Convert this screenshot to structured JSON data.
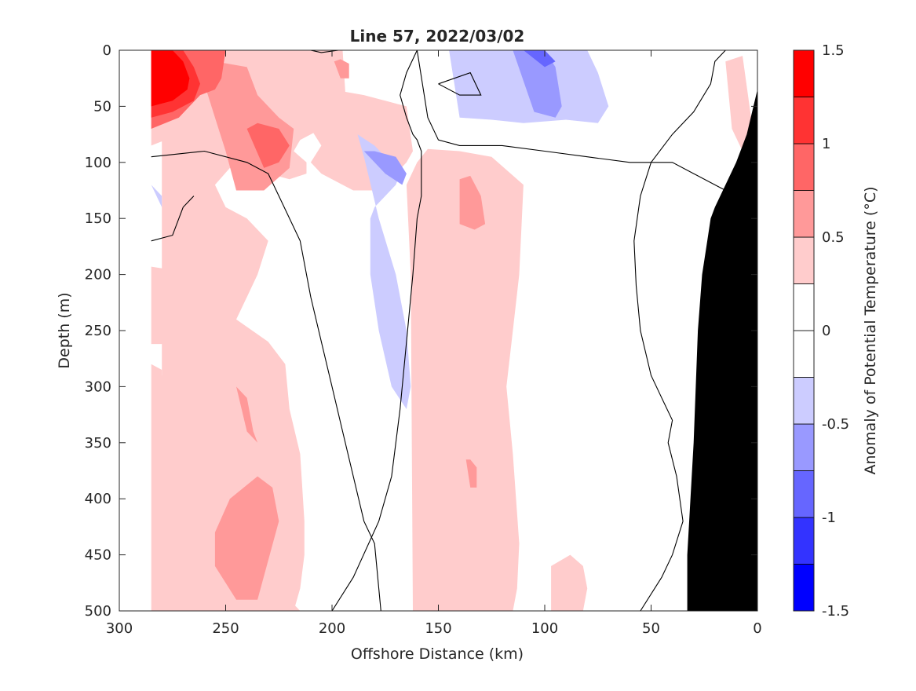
{
  "chart_data": {
    "type": "heatmap",
    "subtype": "filled-contour",
    "title": "Line 57, 2022/03/02",
    "xlabel": "Offshore Distance (km)",
    "ylabel": "Depth (m)",
    "colorbar_label": "Anomaly of Potential Temperature (°C)",
    "xlim": [
      300,
      0
    ],
    "x_reversed": true,
    "ylim": [
      0,
      500
    ],
    "y_reversed": true,
    "xticks": [
      {
        "value": 300,
        "label": "300"
      },
      {
        "value": 250,
        "label": "250"
      },
      {
        "value": 200,
        "label": "200"
      },
      {
        "value": 150,
        "label": "150"
      },
      {
        "value": 100,
        "label": "100"
      },
      {
        "value": 50,
        "label": "50"
      },
      {
        "value": 0,
        "label": "0"
      }
    ],
    "yticks": [
      {
        "value": 0,
        "label": "0"
      },
      {
        "value": 50,
        "label": "50"
      },
      {
        "value": 100,
        "label": "100"
      },
      {
        "value": 150,
        "label": "150"
      },
      {
        "value": 200,
        "label": "200"
      },
      {
        "value": 250,
        "label": "250"
      },
      {
        "value": 300,
        "label": "300"
      },
      {
        "value": 350,
        "label": "350"
      },
      {
        "value": 400,
        "label": "400"
      },
      {
        "value": 450,
        "label": "450"
      },
      {
        "value": 500,
        "label": "500"
      }
    ],
    "colorbar": {
      "range": [
        -1.5,
        1.5
      ],
      "levels": [
        -1.5,
        -1.25,
        -1.0,
        -0.75,
        -0.5,
        -0.25,
        0.0,
        0.25,
        0.5,
        0.75,
        1.0,
        1.25,
        1.5
      ],
      "colors": [
        "#0000ff",
        "#3333ff",
        "#6666ff",
        "#9999ff",
        "#ccccff",
        "#ffffff",
        "#ffffff",
        "#ffcccc",
        "#ff9999",
        "#ff6666",
        "#ff3333",
        "#ff0000"
      ],
      "ticks": [
        {
          "value": 1.5,
          "label": "1.5"
        },
        {
          "value": 1.0,
          "label": "1"
        },
        {
          "value": 0.5,
          "label": "0.5"
        },
        {
          "value": 0.0,
          "label": "0"
        },
        {
          "value": -0.5,
          "label": "-0.5"
        },
        {
          "value": -1.0,
          "label": "-1"
        },
        {
          "value": -1.5,
          "label": "-1.5"
        }
      ]
    },
    "data_extent_x": [
      0,
      285
    ],
    "bathymetry": {
      "color": "#000000",
      "x": [
        0,
        0,
        5,
        10,
        15,
        20,
        22,
        24,
        26,
        28,
        30,
        33,
        33,
        0
      ],
      "y": [
        500,
        35,
        75,
        100,
        120,
        140,
        150,
        175,
        200,
        250,
        350,
        450,
        500,
        500
      ]
    },
    "regions": [
      {
        "level": 0.375,
        "x": [
          285,
          285,
          265,
          250,
          245,
          235,
          222,
          215,
          210,
          205,
          210,
          205,
          195,
          190,
          175,
          170,
          165,
          162,
          165,
          175,
          185,
          200,
          215,
          230,
          250,
          265,
          275,
          285,
          285,
          280,
          280,
          265,
          265,
          250,
          238,
          228,
          218,
          215,
          213,
          213,
          215,
          220,
          222,
          230,
          245,
          240,
          235,
          230,
          240,
          250,
          255,
          248,
          230,
          220,
          212,
          212,
          218,
          215,
          205,
          193,
          195
        ],
        "y": [
          0,
          85,
          70,
          60,
          60,
          55,
          55,
          60,
          70,
          85,
          100,
          110,
          120,
          125,
          125,
          110,
          100,
          90,
          50,
          45,
          40,
          35,
          30,
          20,
          0,
          0,
          0,
          0,
          0,
          0,
          500,
          500,
          500,
          500,
          500,
          500,
          500,
          480,
          450,
          420,
          360,
          320,
          280,
          260,
          240,
          220,
          200,
          170,
          150,
          140,
          120,
          105,
          110,
          115,
          110,
          100,
          90,
          80,
          70,
          60,
          0
        ]
      },
      {
        "level": 0.375,
        "x": [
          285,
          285,
          200,
          200,
          215,
          230,
          240,
          250,
          255,
          265,
          280,
          280,
          285
        ],
        "y": [
          280,
          500,
          500,
          500,
          500,
          470,
          440,
          390,
          330,
          300,
          290,
          285,
          280
        ]
      },
      {
        "level": 0.375,
        "x": [
          285,
          278,
          275,
          277,
          280,
          285
        ],
        "y": [
          193,
          195,
          220,
          250,
          262,
          262
        ]
      },
      {
        "level": 0.375,
        "x": [
          160,
          165,
          163,
          162,
          150,
          135,
          122,
          115,
          113,
          112,
          115,
          118,
          115,
          112,
          110,
          125,
          140,
          155,
          160
        ],
        "y": [
          100,
          120,
          200,
          500,
          500,
          500,
          500,
          500,
          480,
          440,
          360,
          300,
          250,
          200,
          120,
          95,
          90,
          88,
          100
        ]
      },
      {
        "level": 0.375,
        "x": [
          97,
          97,
          88,
          82,
          80,
          82,
          88,
          97
        ],
        "y": [
          500,
          460,
          450,
          460,
          480,
          500,
          500,
          500
        ]
      },
      {
        "level": 0.375,
        "x": [
          15,
          7,
          3,
          4,
          7,
          12,
          15
        ],
        "y": [
          10,
          5,
          60,
          85,
          90,
          70,
          10
        ]
      },
      {
        "level": 0.625,
        "x": [
          260,
          255,
          240,
          235,
          225,
          218,
          220,
          232,
          245,
          250,
          255,
          260
        ],
        "y": [
          30,
          10,
          15,
          40,
          60,
          70,
          105,
          125,
          125,
          90,
          60,
          30
        ]
      },
      {
        "level": 0.625,
        "x": [
          245,
          240,
          235,
          237,
          240,
          245
        ],
        "y": [
          300,
          340,
          350,
          340,
          310,
          300
        ]
      },
      {
        "level": 0.625,
        "x": [
          255,
          255,
          245,
          235,
          225,
          228,
          235,
          248,
          255
        ],
        "y": [
          430,
          460,
          490,
          490,
          420,
          390,
          380,
          400,
          430
        ]
      },
      {
        "level": 0.625,
        "x": [
          140,
          140,
          133,
          128,
          130,
          135,
          140
        ],
        "y": [
          115,
          155,
          160,
          155,
          130,
          112,
          115
        ]
      },
      {
        "level": 0.625,
        "x": [
          137,
          135,
          132,
          132,
          135,
          137
        ],
        "y": [
          365,
          390,
          390,
          372,
          365,
          365
        ]
      },
      {
        "level": 0.625,
        "x": [
          199,
          196,
          192,
          192,
          196,
          199
        ],
        "y": [
          10,
          25,
          25,
          12,
          8,
          10
        ]
      },
      {
        "level": 0.875,
        "x": [
          285,
          285,
          272,
          262,
          255,
          252,
          250,
          255,
          265,
          275,
          285
        ],
        "y": [
          0,
          70,
          60,
          40,
          35,
          25,
          0,
          0,
          0,
          0,
          0
        ]
      },
      {
        "level": 0.875,
        "x": [
          240,
          235,
          225,
          220,
          225,
          232,
          240
        ],
        "y": [
          70,
          65,
          70,
          85,
          100,
          105,
          70
        ]
      },
      {
        "level": 1.125,
        "x": [
          285,
          285,
          275,
          265,
          262,
          265,
          270,
          285
        ],
        "y": [
          0,
          60,
          55,
          45,
          30,
          15,
          0,
          0
        ]
      },
      {
        "level": 1.375,
        "x": [
          285,
          285,
          275,
          268,
          267,
          270,
          275,
          285
        ],
        "y": [
          0,
          50,
          45,
          35,
          25,
          10,
          0,
          0
        ]
      },
      {
        "level": -0.375,
        "x": [
          188,
          185,
          178,
          170,
          165,
          163,
          165,
          172,
          178,
          182,
          182,
          180,
          175,
          170,
          168,
          175,
          180,
          188
        ],
        "y": [
          75,
          95,
          150,
          200,
          250,
          300,
          320,
          300,
          250,
          200,
          150,
          140,
          130,
          120,
          110,
          95,
          85,
          75
        ]
      },
      {
        "level": -0.375,
        "x": [
          145,
          140,
          120,
          100,
          90,
          80,
          75,
          70,
          75,
          90,
          110,
          125,
          140,
          145
        ],
        "y": [
          0,
          0,
          0,
          0,
          0,
          0,
          20,
          50,
          65,
          62,
          65,
          62,
          60,
          0
        ]
      },
      {
        "level": -0.375,
        "x": [
          285,
          280,
          280,
          285
        ],
        "y": [
          120,
          130,
          140,
          120
        ]
      },
      {
        "level": -0.625,
        "x": [
          185,
          180,
          170,
          165,
          167,
          175,
          185
        ],
        "y": [
          90,
          90,
          95,
          110,
          120,
          110,
          90
        ]
      },
      {
        "level": -0.625,
        "x": [
          115,
          110,
          100,
          95,
          92,
          95,
          105,
          115
        ],
        "y": [
          0,
          0,
          0,
          15,
          50,
          60,
          55,
          0
        ]
      },
      {
        "level": -0.875,
        "x": [
          110,
          100,
          95,
          100,
          110
        ],
        "y": [
          0,
          0,
          10,
          15,
          0
        ]
      }
    ],
    "zero_contours": [
      {
        "x": [
          200,
          190,
          178,
          172,
          168,
          165,
          162,
          160,
          158,
          158,
          160,
          162,
          165,
          168,
          165,
          160,
          160,
          160,
          155,
          150,
          140,
          120,
          100,
          80,
          60,
          50,
          40,
          30,
          22,
          20,
          15,
          12,
          7
        ],
        "y": [
          500,
          470,
          420,
          380,
          320,
          260,
          200,
          150,
          130,
          90,
          80,
          75,
          60,
          40,
          20,
          0,
          0,
          0,
          60,
          80,
          85,
          85,
          90,
          95,
          100,
          100,
          75,
          55,
          30,
          10,
          0,
          0,
          0
        ]
      },
      {
        "x": [
          177,
          180,
          185,
          190,
          195,
          200,
          205,
          210,
          215,
          225,
          230,
          240,
          260,
          285
        ],
        "y": [
          500,
          440,
          420,
          380,
          340,
          300,
          260,
          220,
          170,
          130,
          110,
          100,
          90,
          95
        ]
      },
      {
        "x": [
          285,
          275,
          270,
          265
        ],
        "y": [
          170,
          165,
          140,
          130
        ]
      },
      {
        "x": [
          55,
          45,
          40,
          35,
          38,
          42,
          40,
          45,
          50,
          55,
          57,
          58,
          55,
          50,
          40,
          30,
          20,
          10
        ],
        "y": [
          500,
          470,
          450,
          420,
          380,
          350,
          330,
          310,
          290,
          250,
          210,
          170,
          130,
          100,
          100,
          110,
          120,
          130
        ]
      },
      {
        "x": [
          150,
          135,
          130,
          140,
          150
        ],
        "y": [
          30,
          20,
          40,
          40,
          30
        ]
      },
      {
        "x": [
          210,
          200,
          197,
          205,
          210
        ],
        "y": [
          0,
          0,
          0,
          2,
          0
        ]
      }
    ]
  }
}
